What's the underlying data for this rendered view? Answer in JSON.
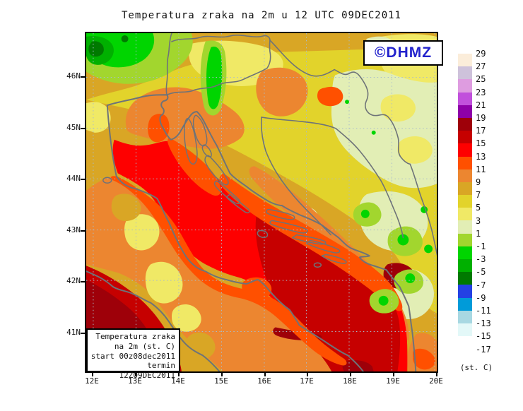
{
  "title": "Temperatura zraka na 2m u 12 UTC 09DEC2011",
  "watermark": {
    "label": "©DHMZ",
    "color": "#2222CC"
  },
  "axes": {
    "x_ticks": [
      "12E",
      "13E",
      "14E",
      "15E",
      "16E",
      "17E",
      "18E",
      "19E",
      "20E"
    ],
    "y_ticks": [
      "46N",
      "45N",
      "44N",
      "43N",
      "42N",
      "41N"
    ]
  },
  "colorbar": {
    "unit_label": "(st. C)",
    "boundary_labels": [
      "29",
      "27",
      "25",
      "23",
      "21",
      "19",
      "17",
      "15",
      "13",
      "11",
      "9",
      "7",
      "5",
      "3",
      "1",
      "-1",
      "-3",
      "-5",
      "-7",
      "-9",
      "-11",
      "-13",
      "-15",
      "-17"
    ],
    "band_colors": [
      "#FBEDDA",
      "#CEC2DB",
      "#DE9CE0",
      "#C150DC",
      "#8E00A8",
      "#9E0009",
      "#C60000",
      "#FE0000",
      "#FF5000",
      "#EC8630",
      "#D9A625",
      "#E2D32B",
      "#F0E966",
      "#E2EEB5",
      "#A2D62E",
      "#00D500",
      "#00B000",
      "#007A00",
      "#2441E4",
      "#009BD9",
      "#A8D8E2",
      "#E3F8F8",
      "#FFFFFF"
    ]
  },
  "legend_box": {
    "lines": [
      "Temperatura zraka",
      "na 2m (st. C)",
      "start 00z08dec2011",
      "termin 12Z09DEC2011"
    ]
  },
  "map": {
    "field_summary": "Filled 2m-temperature contours: 15-19 C (dark red/maroon) over the central and southern Adriatic and Tyrrhenian corner, 13-15 C (red) over the northern Adriatic, 9-13 C (orange) along the coasts, 5-9 C (yellow/goldenrod) inland, 1-5 C (pale yellow-green) in Slavonia and Bosnia, below 1 C (greens) over the Alps (NW corner) and Bosnian mountains",
    "coastline_color": "#6E7378",
    "grid_color": "#A9BCCB"
  }
}
